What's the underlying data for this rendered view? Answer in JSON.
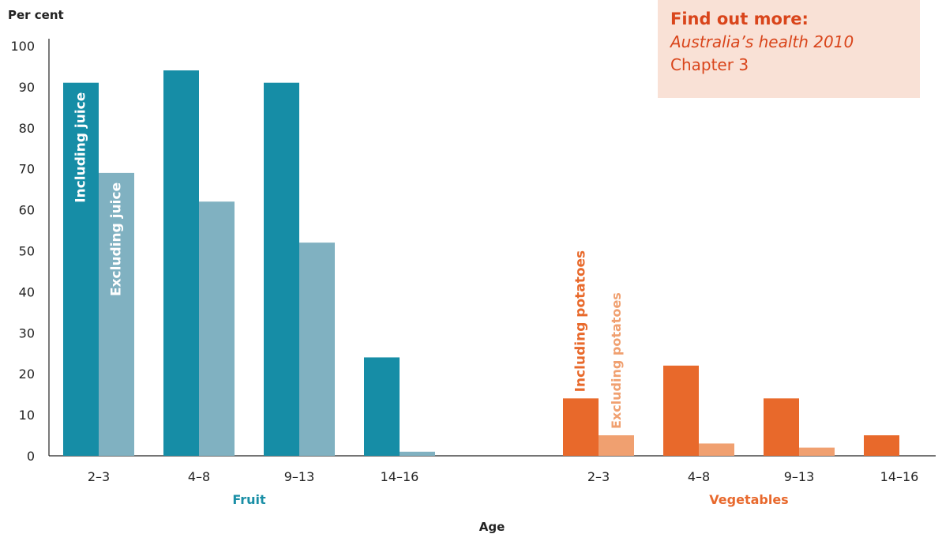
{
  "chart_data": {
    "type": "bar",
    "ylabel": "Per cent",
    "xlabel": "Age",
    "ylim": [
      0,
      100
    ],
    "yticks": [
      0,
      10,
      20,
      30,
      40,
      50,
      60,
      70,
      80,
      90,
      100
    ],
    "grid": false,
    "groups": [
      {
        "name": "Fruit",
        "color": "#1a8fa6",
        "categories": [
          "2–3",
          "4–8",
          "9–13",
          "14–16"
        ],
        "series": [
          {
            "name": "Including juice",
            "color": "#168da6",
            "values": [
              91,
              94,
              91,
              24
            ]
          },
          {
            "name": "Excluding juice",
            "color": "#80b1c1",
            "values": [
              69,
              62,
              52,
              1
            ]
          }
        ]
      },
      {
        "name": "Vegetables",
        "color": "#e8692d",
        "categories": [
          "2–3",
          "4–8",
          "9–13",
          "14–16"
        ],
        "series": [
          {
            "name": "Including potatoes",
            "color": "#e8692b",
            "values": [
              14,
              22,
              14,
              5
            ]
          },
          {
            "name": "Excluding potatoes",
            "color": "#f0a070",
            "values": [
              5,
              3,
              2,
              0
            ]
          }
        ]
      }
    ]
  },
  "callout": {
    "title": "Find out more:",
    "line1": "Australia’s health 2010",
    "line2": "Chapter 3"
  }
}
